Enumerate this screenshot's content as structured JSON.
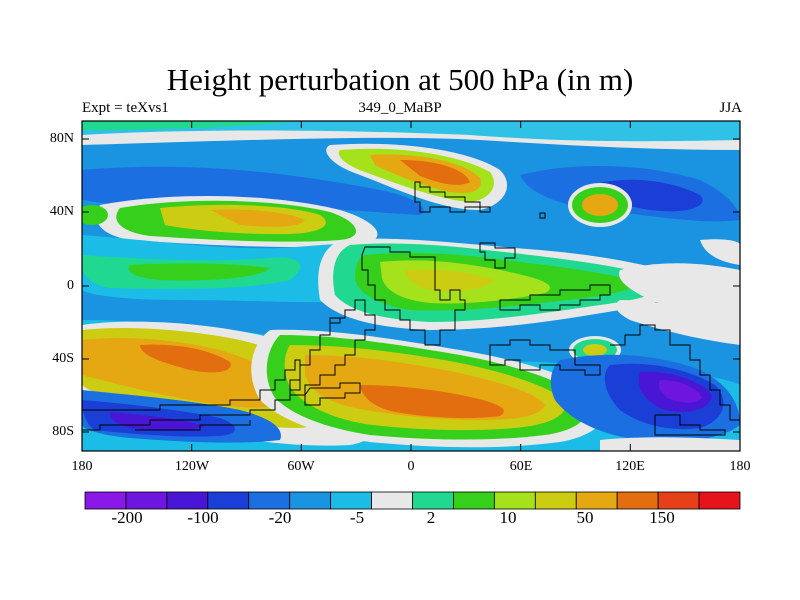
{
  "title": "Height perturbation at 500 hPa (in m)",
  "left_string": "Expt = teXvs1",
  "center_string": "349_0_MaBP",
  "right_string": "JJA",
  "y_ticks": [
    "80N",
    "40N",
    "0",
    "40S",
    "80S"
  ],
  "x_ticks": [
    "180",
    "120W",
    "60W",
    "0",
    "60E",
    "120E",
    "180"
  ],
  "colorbar": {
    "colors": [
      "#8a18e6",
      "#6e15e0",
      "#4a16d6",
      "#1b3fd6",
      "#1c6fe0",
      "#1a93e0",
      "#1bbce6",
      "#e8e8e8",
      "#20d890",
      "#36cf1c",
      "#a6e21c",
      "#cccd12",
      "#e6a812",
      "#e26e10",
      "#e6401a",
      "#e6141a"
    ],
    "tick_labels": [
      "-200",
      "-100",
      "-20",
      "-5",
      "2",
      "10",
      "50",
      "150"
    ]
  }
}
